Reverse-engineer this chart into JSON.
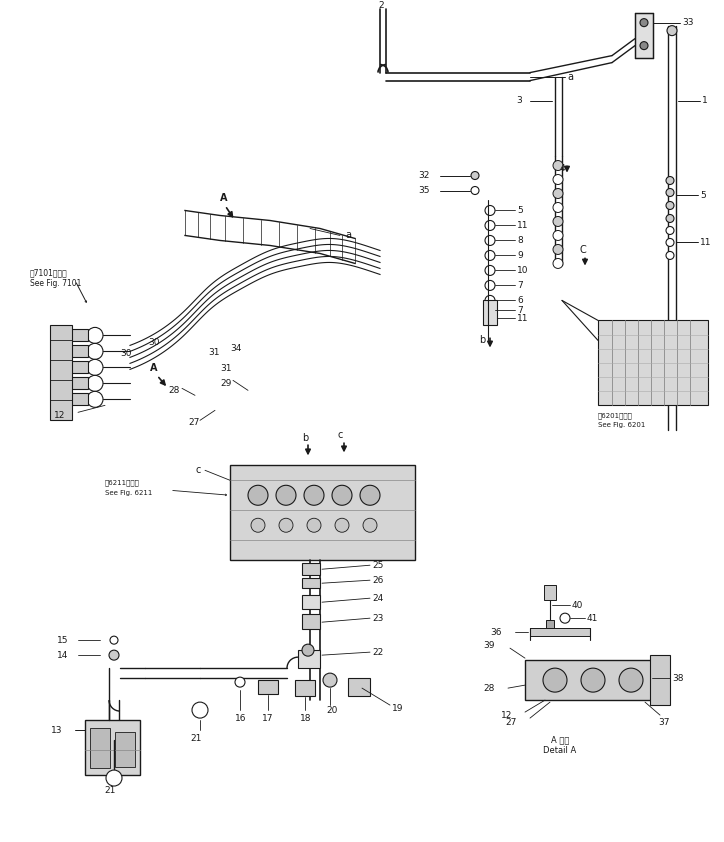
{
  "bg_color": "#ffffff",
  "line_color": "#1a1a1a",
  "fig_width": 7.24,
  "fig_height": 8.42,
  "dpi": 100,
  "labels": {
    "see_fig_7101_jp": "第7101図参照",
    "see_fig_7101": "See Fig. 7101",
    "see_fig_6211_jp": "第6211図参照",
    "see_fig_6211": "See Fig. 6211",
    "see_fig_6201_jp": "第6201図参照",
    "see_fig_6201": "See Fig. 6201",
    "detail_a_jp": "A 詳細",
    "detail_a": "Detail A"
  }
}
